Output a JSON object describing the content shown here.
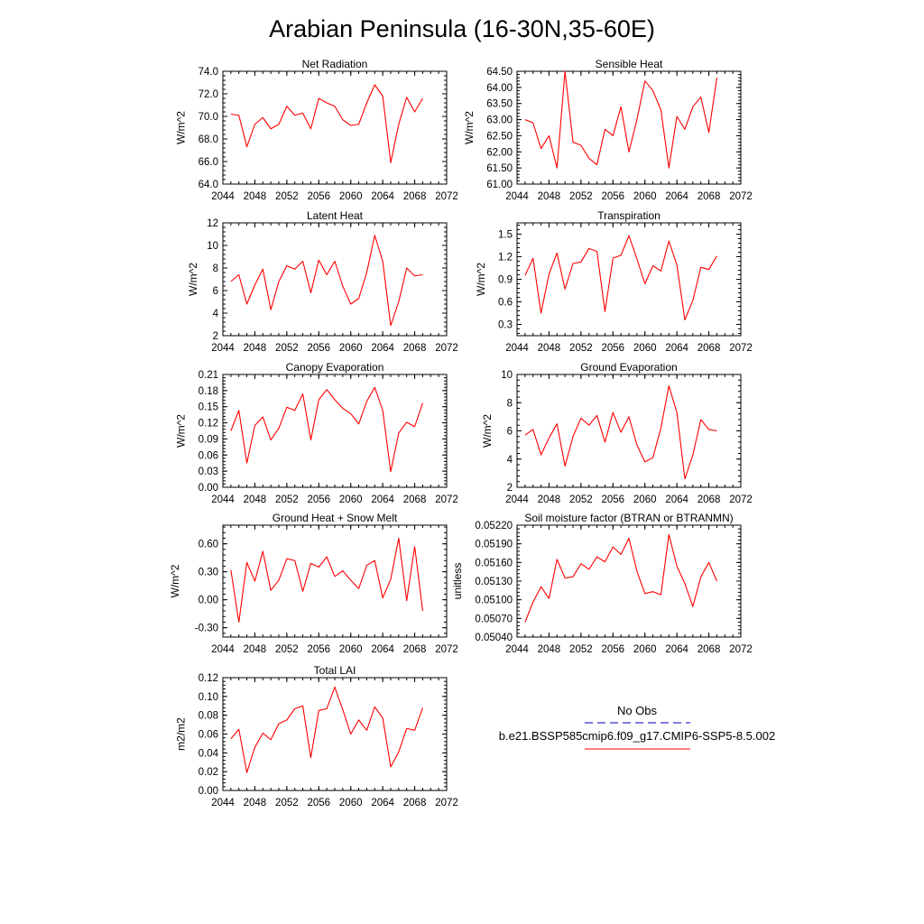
{
  "title": "Arabian Peninsula (16-30N,35-60E)",
  "colors": {
    "series": "#ff0000",
    "obs": "#0000cc",
    "axis": "#000000"
  },
  "legend": {
    "obs_label": "No Obs",
    "case_label": "b.e21.BSSP585cmip6.f09_g17.CMIP6-SSP5-8.5.002"
  },
  "chart_data": [
    {
      "type": "line",
      "title": "Net Radiation",
      "ylabel": "W/m^2",
      "xlim": [
        2044,
        2072
      ],
      "xticks": [
        2044,
        2048,
        2052,
        2056,
        2060,
        2064,
        2068,
        2072
      ],
      "ylim": [
        64.0,
        74.0
      ],
      "yticks": [
        "64.0",
        "66.0",
        "68.0",
        "70.0",
        "72.0",
        "74.0"
      ],
      "series": [
        {
          "x": [
            2045,
            2046,
            2047,
            2048,
            2049,
            2050,
            2051,
            2052,
            2053,
            2054,
            2055,
            2056,
            2057,
            2058,
            2059,
            2060,
            2061,
            2062,
            2063,
            2064,
            2065,
            2066,
            2067,
            2068,
            2069
          ],
          "values": [
            70.2,
            70.1,
            67.3,
            69.3,
            69.9,
            68.9,
            69.3,
            70.9,
            70.1,
            70.3,
            68.9,
            71.6,
            71.2,
            70.9,
            69.7,
            69.2,
            69.3,
            71.2,
            72.8,
            71.8,
            65.9,
            69.3,
            71.7,
            70.4,
            71.6
          ]
        }
      ]
    },
    {
      "type": "line",
      "title": "Sensible Heat",
      "ylabel": "W/m^2",
      "xlim": [
        2044,
        2072
      ],
      "xticks": [
        2044,
        2048,
        2052,
        2056,
        2060,
        2064,
        2068,
        2072
      ],
      "ylim": [
        61.0,
        64.5
      ],
      "yticks": [
        "61.00",
        "61.50",
        "62.00",
        "62.50",
        "63.00",
        "63.50",
        "64.00",
        "64.50"
      ],
      "series": [
        {
          "x": [
            2045,
            2046,
            2047,
            2048,
            2049,
            2050,
            2051,
            2052,
            2053,
            2054,
            2055,
            2056,
            2057,
            2058,
            2059,
            2060,
            2061,
            2062,
            2063,
            2064,
            2065,
            2066,
            2067,
            2068,
            2069
          ],
          "values": [
            63.0,
            62.9,
            62.1,
            62.5,
            61.5,
            64.5,
            62.3,
            62.2,
            61.8,
            61.6,
            62.7,
            62.5,
            63.4,
            62.0,
            63.0,
            64.2,
            63.9,
            63.3,
            61.5,
            63.1,
            62.7,
            63.4,
            63.7,
            62.6,
            64.3
          ]
        }
      ]
    },
    {
      "type": "line",
      "title": "Latent Heat",
      "ylabel": "W/m^2",
      "xlim": [
        2044,
        2072
      ],
      "xticks": [
        2044,
        2048,
        2052,
        2056,
        2060,
        2064,
        2068,
        2072
      ],
      "ylim": [
        2,
        12
      ],
      "yticks": [
        "2",
        "4",
        "6",
        "8",
        "10",
        "12"
      ],
      "series": [
        {
          "x": [
            2045,
            2046,
            2047,
            2048,
            2049,
            2050,
            2051,
            2052,
            2053,
            2054,
            2055,
            2056,
            2057,
            2058,
            2059,
            2060,
            2061,
            2062,
            2063,
            2064,
            2065,
            2066,
            2067,
            2068,
            2069
          ],
          "values": [
            6.8,
            7.4,
            4.8,
            6.5,
            7.9,
            4.3,
            6.8,
            8.2,
            7.9,
            8.6,
            5.8,
            8.7,
            7.4,
            8.6,
            6.4,
            4.8,
            5.3,
            7.6,
            10.9,
            8.6,
            2.9,
            5.0,
            8.0,
            7.3,
            7.4
          ]
        }
      ]
    },
    {
      "type": "line",
      "title": "Transpiration",
      "ylabel": "W/m^2",
      "xlim": [
        2044,
        2072
      ],
      "xticks": [
        2044,
        2048,
        2052,
        2056,
        2060,
        2064,
        2068,
        2072
      ],
      "ylim": [
        0.15,
        1.65
      ],
      "yticks": [
        "0.3",
        "0.6",
        "0.9",
        "1.2",
        "1.5"
      ],
      "series": [
        {
          "x": [
            2045,
            2046,
            2047,
            2048,
            2049,
            2050,
            2051,
            2052,
            2053,
            2054,
            2055,
            2056,
            2057,
            2058,
            2059,
            2060,
            2061,
            2062,
            2063,
            2064,
            2065,
            2066,
            2067,
            2068,
            2069
          ],
          "values": [
            0.95,
            1.18,
            0.45,
            0.97,
            1.25,
            0.77,
            1.11,
            1.13,
            1.31,
            1.27,
            0.47,
            1.18,
            1.22,
            1.48,
            1.17,
            0.84,
            1.08,
            1.01,
            1.41,
            1.09,
            0.36,
            0.62,
            1.06,
            1.03,
            1.21
          ]
        }
      ]
    },
    {
      "type": "line",
      "title": "Canopy Evaporation",
      "ylabel": "W/m^2",
      "xlim": [
        2044,
        2072
      ],
      "xticks": [
        2044,
        2048,
        2052,
        2056,
        2060,
        2064,
        2068,
        2072
      ],
      "ylim": [
        0,
        0.21
      ],
      "yticks": [
        "0.00",
        "0.03",
        "0.06",
        "0.09",
        "0.12",
        "0.15",
        "0.18",
        "0.21"
      ],
      "series": [
        {
          "x": [
            2045,
            2046,
            2047,
            2048,
            2049,
            2050,
            2051,
            2052,
            2053,
            2054,
            2055,
            2056,
            2057,
            2058,
            2059,
            2060,
            2061,
            2062,
            2063,
            2064,
            2065,
            2066,
            2067,
            2068,
            2069
          ],
          "values": [
            0.105,
            0.143,
            0.045,
            0.115,
            0.131,
            0.088,
            0.11,
            0.149,
            0.143,
            0.174,
            0.088,
            0.163,
            0.182,
            0.163,
            0.147,
            0.137,
            0.118,
            0.16,
            0.186,
            0.143,
            0.029,
            0.101,
            0.121,
            0.113,
            0.157
          ]
        }
      ]
    },
    {
      "type": "line",
      "title": "Ground Evaporation",
      "ylabel": "W/m^2",
      "xlim": [
        2044,
        2072
      ],
      "xticks": [
        2044,
        2048,
        2052,
        2056,
        2060,
        2064,
        2068,
        2072
      ],
      "ylim": [
        2,
        10
      ],
      "yticks": [
        "2",
        "4",
        "6",
        "8",
        "10"
      ],
      "series": [
        {
          "x": [
            2045,
            2046,
            2047,
            2048,
            2049,
            2050,
            2051,
            2052,
            2053,
            2054,
            2055,
            2056,
            2057,
            2058,
            2059,
            2060,
            2061,
            2062,
            2063,
            2064,
            2065,
            2066,
            2067,
            2068,
            2069
          ],
          "values": [
            5.7,
            6.1,
            4.3,
            5.5,
            6.5,
            3.5,
            5.6,
            6.9,
            6.4,
            7.1,
            5.2,
            7.3,
            5.9,
            7.0,
            5.0,
            3.8,
            4.1,
            6.2,
            9.2,
            7.3,
            2.6,
            4.3,
            6.8,
            6.1,
            6.0
          ]
        }
      ]
    },
    {
      "type": "line",
      "title": "Ground Heat + Snow Melt",
      "ylabel": "W/m^2",
      "xlim": [
        2044,
        2072
      ],
      "xticks": [
        2044,
        2048,
        2052,
        2056,
        2060,
        2064,
        2068,
        2072
      ],
      "ylim": [
        -0.4,
        0.8
      ],
      "yticks": [
        "-0.30",
        "0.00",
        "0.30",
        "0.60"
      ],
      "series": [
        {
          "x": [
            2045,
            2046,
            2047,
            2048,
            2049,
            2050,
            2051,
            2052,
            2053,
            2054,
            2055,
            2056,
            2057,
            2058,
            2059,
            2060,
            2061,
            2062,
            2063,
            2064,
            2065,
            2066,
            2067,
            2068,
            2069
          ],
          "values": [
            0.32,
            -0.24,
            0.4,
            0.2,
            0.52,
            0.1,
            0.21,
            0.44,
            0.42,
            0.09,
            0.39,
            0.35,
            0.46,
            0.25,
            0.31,
            0.21,
            0.12,
            0.37,
            0.42,
            0.02,
            0.22,
            0.66,
            -0.01,
            0.57,
            -0.12
          ]
        }
      ]
    },
    {
      "type": "line",
      "title": "Soil moisture factor (BTRAN or BTRANMN)",
      "ylabel": "unitless",
      "xlim": [
        2044,
        2072
      ],
      "xticks": [
        2044,
        2048,
        2052,
        2056,
        2060,
        2064,
        2068,
        2072
      ],
      "ylim": [
        0.0504,
        0.0522
      ],
      "yticks": [
        "0.05040",
        "0.05070",
        "0.05100",
        "0.05130",
        "0.05160",
        "0.05190",
        "0.05220"
      ],
      "series": [
        {
          "x": [
            2045,
            2046,
            2047,
            2048,
            2049,
            2050,
            2051,
            2052,
            2053,
            2054,
            2055,
            2056,
            2057,
            2058,
            2059,
            2060,
            2061,
            2062,
            2063,
            2064,
            2065,
            2066,
            2067,
            2068,
            2069
          ],
          "values": [
            0.05064,
            0.05096,
            0.05121,
            0.05102,
            0.05165,
            0.05135,
            0.05137,
            0.05158,
            0.05149,
            0.05169,
            0.05161,
            0.05185,
            0.05173,
            0.05199,
            0.05146,
            0.0511,
            0.05113,
            0.05108,
            0.05205,
            0.05154,
            0.05126,
            0.05089,
            0.05137,
            0.0516,
            0.0513
          ]
        }
      ]
    },
    {
      "type": "line",
      "title": "Total LAI",
      "ylabel": "m2/m2",
      "xlim": [
        2044,
        2072
      ],
      "xticks": [
        2044,
        2048,
        2052,
        2056,
        2060,
        2064,
        2068,
        2072
      ],
      "ylim": [
        0,
        0.12
      ],
      "yticks": [
        "0.00",
        "0.02",
        "0.04",
        "0.06",
        "0.08",
        "0.10",
        "0.12"
      ],
      "series": [
        {
          "x": [
            2045,
            2046,
            2047,
            2048,
            2049,
            2050,
            2051,
            2052,
            2053,
            2054,
            2055,
            2056,
            2057,
            2058,
            2059,
            2060,
            2061,
            2062,
            2063,
            2064,
            2065,
            2066,
            2067,
            2068,
            2069
          ],
          "values": [
            0.055,
            0.065,
            0.019,
            0.046,
            0.061,
            0.054,
            0.071,
            0.075,
            0.087,
            0.09,
            0.035,
            0.085,
            0.087,
            0.11,
            0.086,
            0.06,
            0.075,
            0.064,
            0.089,
            0.077,
            0.025,
            0.041,
            0.066,
            0.064,
            0.088
          ]
        }
      ]
    }
  ]
}
